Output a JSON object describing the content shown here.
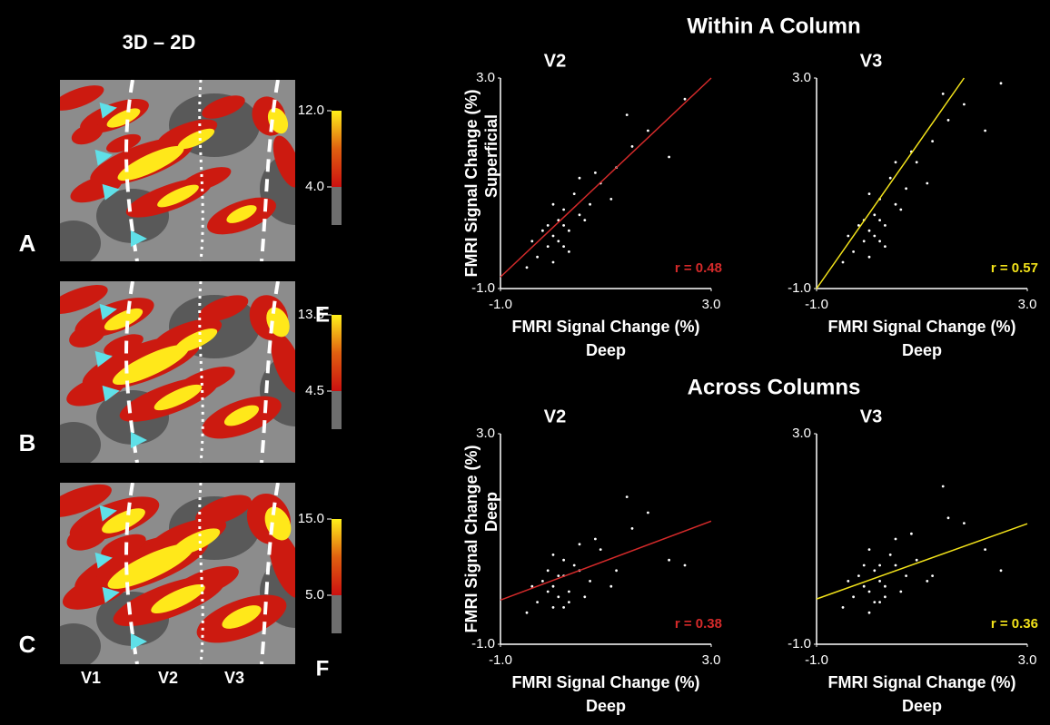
{
  "figure": {
    "left_title": "3D – 2D",
    "panel_labels": [
      "A",
      "B",
      "C"
    ],
    "area_labels": [
      "V1",
      "V2",
      "V3"
    ],
    "colorbars": [
      {
        "lim": [
          0,
          12.0
        ],
        "ticks": [
          {
            "value": 12.0,
            "label": "12.0"
          },
          {
            "value": 4.0,
            "label": "4.0"
          }
        ]
      },
      {
        "lim": [
          0,
          13.5
        ],
        "ticks": [
          {
            "value": 13.5,
            "label": "13.5"
          },
          {
            "value": 4.5,
            "label": "4.5"
          }
        ]
      },
      {
        "lim": [
          0,
          15.0
        ],
        "ticks": [
          {
            "value": 15.0,
            "label": "15.0"
          },
          {
            "value": 5.0,
            "label": "5.0"
          }
        ]
      }
    ],
    "row_titles": [
      "Within A Column",
      "Across Columns"
    ],
    "row_labels": [
      "E",
      "F"
    ]
  },
  "chart_data": [
    {
      "type": "scatter",
      "title": "V2",
      "color": "#ffffff",
      "x": [
        -0.3,
        -0.1,
        0,
        0.1,
        0.2,
        0.3,
        0.5,
        0.7,
        -0.2,
        0.0,
        0.2,
        0.4,
        0.6,
        0.9,
        1.2,
        1.5,
        -0.5,
        0.1,
        0.3,
        0.8,
        1.1,
        1.8,
        2.2,
        0.0,
        -0.4,
        0.5,
        1.4,
        2.5,
        0.2,
        -0.1
      ],
      "y": [
        -0.4,
        -0.2,
        0.0,
        -0.1,
        0.2,
        0.1,
        0.4,
        0.6,
        0.1,
        -0.5,
        0.5,
        0.8,
        0.3,
        1.0,
        1.3,
        1.7,
        -0.6,
        0.3,
        -0.3,
        1.2,
        0.7,
        2.0,
        1.5,
        0.6,
        -0.1,
        1.1,
        2.3,
        2.6,
        -0.2,
        0.2
      ],
      "xlim": [
        -1,
        3
      ],
      "ylim": [
        -1,
        3
      ],
      "xticks": [
        {
          "value": -1,
          "label": "-1.0"
        },
        {
          "value": 3,
          "label": "3.0"
        }
      ],
      "yticks": [
        {
          "value": -1,
          "label": "-1.0"
        },
        {
          "value": 3,
          "label": "3.0"
        }
      ],
      "xlabel": "FMRI Signal Change (%)",
      "xlabel_sub": "Deep",
      "ylabel": "FMRI Signal Change (%)",
      "ylabel_sub": "Superficial",
      "annotation": "r = 0.48",
      "fit_line": {
        "x": [
          -1,
          3
        ],
        "y": [
          -0.78,
          3
        ],
        "color": "#d42a2a"
      }
    },
    {
      "type": "scatter",
      "title": "V3",
      "color": "#ffffff",
      "x": [
        -0.3,
        -0.1,
        0,
        0.1,
        0.2,
        0.3,
        0.5,
        0.7,
        -0.2,
        0.0,
        0.2,
        0.4,
        0.6,
        0.9,
        1.2,
        1.5,
        -0.5,
        0.1,
        0.3,
        0.8,
        1.1,
        1.8,
        2.2,
        0.0,
        -0.4,
        0.5,
        1.4,
        2.5,
        0.2,
        -0.1
      ],
      "y": [
        -0.3,
        -0.1,
        0.1,
        0.0,
        0.3,
        0.2,
        0.6,
        0.9,
        0.2,
        -0.4,
        0.7,
        1.1,
        0.5,
        1.4,
        1.8,
        2.2,
        -0.5,
        0.4,
        -0.2,
        1.6,
        1.0,
        2.5,
        2.0,
        0.8,
        0.0,
        1.4,
        2.7,
        2.9,
        -0.1,
        0.3
      ],
      "xlim": [
        -1,
        3
      ],
      "ylim": [
        -1,
        3
      ],
      "xticks": [
        {
          "value": -1,
          "label": "-1.0"
        },
        {
          "value": 3,
          "label": "3.0"
        }
      ],
      "yticks": [
        {
          "value": -1,
          "label": "-1.0"
        },
        {
          "value": 3,
          "label": "3.0"
        }
      ],
      "xlabel": "FMRI Signal Change (%)",
      "xlabel_sub": "Deep",
      "annotation": "r = 0.57",
      "fit_line": {
        "x": [
          -1,
          1.8
        ],
        "y": [
          -1,
          3
        ],
        "color": "#f2e21a"
      }
    },
    {
      "type": "scatter",
      "title": "V2",
      "color": "#ffffff",
      "x": [
        -0.3,
        -0.1,
        0,
        0.1,
        0.2,
        0.3,
        0.5,
        0.7,
        -0.2,
        0.0,
        0.2,
        0.4,
        0.6,
        0.9,
        1.2,
        1.5,
        -0.5,
        0.1,
        0.3,
        0.8,
        1.1,
        1.8,
        2.2,
        0.0,
        -0.4,
        0.5,
        1.4,
        2.5,
        0.2,
        -0.1
      ],
      "y": [
        -0.2,
        0.0,
        0.1,
        -0.1,
        0.3,
        0.0,
        0.4,
        0.2,
        0.2,
        -0.3,
        0.6,
        0.5,
        -0.1,
        0.8,
        0.4,
        1.2,
        -0.4,
        0.3,
        -0.2,
        1.0,
        0.1,
        1.5,
        0.6,
        0.7,
        0.1,
        0.9,
        1.8,
        0.5,
        -0.3,
        0.4
      ],
      "xlim": [
        -1,
        3
      ],
      "ylim": [
        -1,
        3
      ],
      "xticks": [
        {
          "value": -1,
          "label": "-1.0"
        },
        {
          "value": 3,
          "label": "3.0"
        }
      ],
      "yticks": [
        {
          "value": -1,
          "label": "-1.0"
        },
        {
          "value": 3,
          "label": "3.0"
        }
      ],
      "xlabel": "FMRI Signal Change (%)",
      "xlabel_sub": "Deep",
      "ylabel": "FMRI Signal Change (%)",
      "ylabel_sub": "Deep",
      "annotation": "r = 0.38",
      "fit_line": {
        "x": [
          -1,
          3
        ],
        "y": [
          -0.16,
          1.34
        ],
        "color": "#d42a2a"
      }
    },
    {
      "type": "scatter",
      "title": "V3",
      "color": "#ffffff",
      "x": [
        -0.3,
        -0.1,
        0,
        0.1,
        0.2,
        0.3,
        0.5,
        0.7,
        -0.2,
        0.0,
        0.2,
        0.4,
        0.6,
        0.9,
        1.2,
        1.5,
        -0.5,
        0.1,
        0.3,
        0.8,
        1.1,
        1.8,
        2.2,
        0.0,
        -0.4,
        0.5,
        1.4,
        2.5,
        0.2,
        -0.1
      ],
      "y": [
        -0.1,
        0.1,
        0.0,
        -0.2,
        0.2,
        0.1,
        0.5,
        0.3,
        0.3,
        -0.4,
        0.5,
        0.7,
        0.0,
        0.6,
        0.3,
        1.4,
        -0.3,
        0.4,
        -0.1,
        1.1,
        0.2,
        1.3,
        0.8,
        0.8,
        0.2,
        1.0,
        2.0,
        0.4,
        -0.2,
        0.5
      ],
      "xlim": [
        -1,
        3
      ],
      "ylim": [
        -1,
        3
      ],
      "xticks": [
        {
          "value": -1,
          "label": "-1.0"
        },
        {
          "value": 3,
          "label": "3.0"
        }
      ],
      "yticks": [
        {
          "value": -1,
          "label": "-1.0"
        },
        {
          "value": 3,
          "label": "3.0"
        }
      ],
      "xlabel": "FMRI Signal Change (%)",
      "xlabel_sub": "Deep",
      "annotation": "r = 0.36",
      "fit_line": {
        "x": [
          -1,
          3
        ],
        "y": [
          -0.14,
          1.29
        ],
        "color": "#f2e21a"
      }
    }
  ]
}
